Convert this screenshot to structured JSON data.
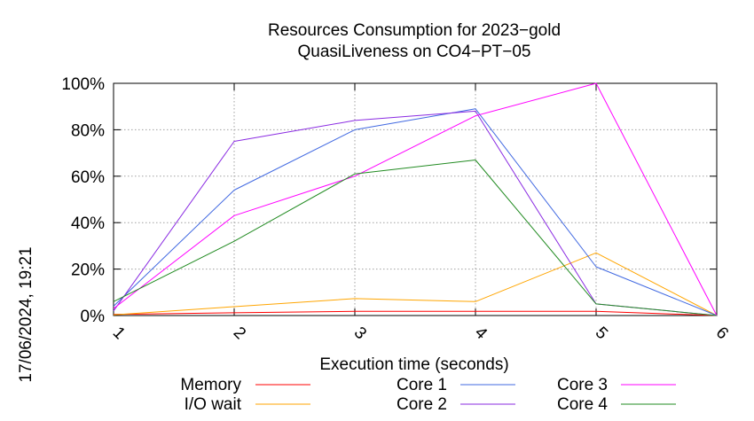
{
  "chart_data": {
    "type": "line",
    "title": [
      "Resources Consumption for 2023−gold",
      "QuasiLiveness on CO4−PT−05"
    ],
    "xlabel": "Execution time (seconds)",
    "ylabel": "",
    "side_label": "17/06/2024, 19:21",
    "x": [
      1,
      2,
      3,
      4,
      5,
      6
    ],
    "xlim": [
      1,
      6
    ],
    "ylim": [
      0,
      100
    ],
    "x_ticks": [
      "1",
      "2",
      "3",
      "4",
      "5",
      "6"
    ],
    "y_ticks": [
      {
        "value": 0,
        "label": "0%"
      },
      {
        "value": 20,
        "label": "20%"
      },
      {
        "value": 40,
        "label": "40%"
      },
      {
        "value": 60,
        "label": "60%"
      },
      {
        "value": 80,
        "label": "80%"
      },
      {
        "value": 100,
        "label": "100%"
      }
    ],
    "grid": true,
    "legend_position": "bottom",
    "series": [
      {
        "name": "Memory",
        "color": "#ff0000",
        "values": [
          0.5,
          1.2,
          1.8,
          1.8,
          1.8,
          0
        ]
      },
      {
        "name": "I/O wait",
        "color": "#ffa500",
        "values": [
          0.3,
          3.8,
          7.3,
          6.0,
          27.0,
          0
        ]
      },
      {
        "name": "Core 1",
        "color": "#4169e1",
        "values": [
          4,
          54,
          80,
          89,
          21,
          0
        ]
      },
      {
        "name": "Core 2",
        "color": "#8a2be2",
        "values": [
          2,
          75,
          84,
          88,
          5,
          0
        ]
      },
      {
        "name": "Core 3",
        "color": "#ff00ff",
        "values": [
          3,
          43,
          60,
          86,
          100,
          0
        ]
      },
      {
        "name": "Core 4",
        "color": "#228b22",
        "values": [
          6,
          32,
          61,
          67,
          5,
          0
        ]
      }
    ]
  }
}
